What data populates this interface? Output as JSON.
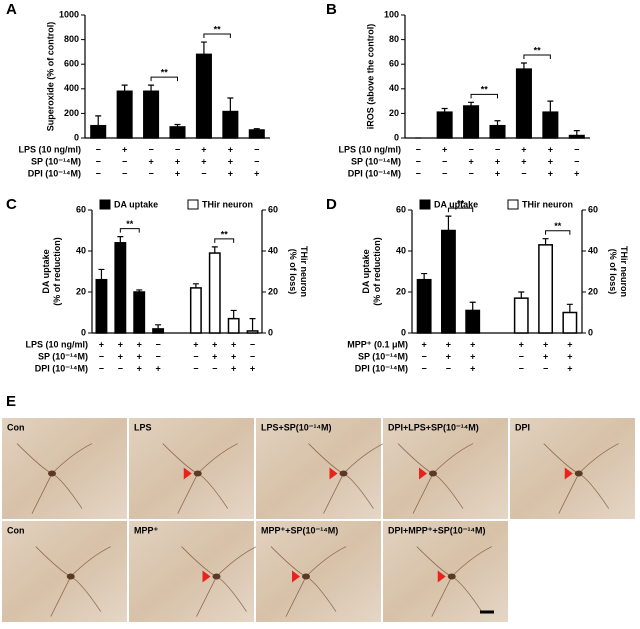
{
  "chart_data": [
    {
      "panel": "A",
      "type": "bar",
      "ylabel": "Superoxide (% of control)",
      "color": "#000000",
      "values": [
        100,
        380,
        380,
        90,
        680,
        215,
        65
      ],
      "errors": [
        80,
        50,
        50,
        20,
        100,
        110,
        10
      ],
      "ylim": [
        0,
        1000
      ],
      "yticks": [
        0,
        200,
        400,
        600,
        800,
        1000
      ],
      "conditions": [
        {
          "label": "LPS (10 ng/ml)",
          "marks": [
            "−",
            "+",
            "−",
            "−",
            "+",
            "+",
            "−"
          ]
        },
        {
          "label": "SP (10⁻¹⁴M)",
          "marks": [
            "−",
            "−",
            "+",
            "+",
            "+",
            "+",
            "−"
          ]
        },
        {
          "label": "DPI (10⁻¹⁴M)",
          "marks": [
            "−",
            "−",
            "−",
            "+",
            "−",
            "+",
            "+"
          ]
        }
      ],
      "significance": [
        {
          "from": 2,
          "to": 3,
          "label": "**"
        },
        {
          "from": 4,
          "to": 5,
          "label": "**"
        }
      ]
    },
    {
      "panel": "B",
      "type": "bar",
      "ylabel": "iROS (above the control)",
      "color": "#000000",
      "values": [
        0,
        21,
        26,
        10,
        56,
        21,
        2
      ],
      "errors": [
        0,
        3,
        3,
        4,
        5,
        9,
        4
      ],
      "ylim": [
        0,
        100
      ],
      "yticks": [
        0,
        20,
        40,
        60,
        80,
        100
      ],
      "conditions": [
        {
          "label": "LPS (10 ng/ml)",
          "marks": [
            "−",
            "+",
            "−",
            "−",
            "+",
            "+",
            "−"
          ]
        },
        {
          "label": "SP (10⁻¹⁴M)",
          "marks": [
            "−",
            "−",
            "+",
            "+",
            "+",
            "+",
            "−"
          ]
        },
        {
          "label": "DPI (10⁻¹⁴M)",
          "marks": [
            "−",
            "−",
            "−",
            "+",
            "−",
            "+",
            "+"
          ]
        }
      ],
      "significance": [
        {
          "from": 2,
          "to": 3,
          "label": "**"
        },
        {
          "from": 4,
          "to": 5,
          "label": "**"
        }
      ]
    },
    {
      "panel": "C",
      "type": "bar",
      "ylabel": "DA uptake\n(% of reduction)",
      "y2label": "THir neuron\n(% of loss)",
      "series": [
        {
          "name": "DA uptake",
          "color": "#000000",
          "values": [
            26,
            44,
            20,
            2
          ],
          "errors": [
            5,
            3,
            1,
            2
          ]
        },
        {
          "name": "THir neuron",
          "color": "#ffffff",
          "axis": "y2",
          "values": [
            22,
            39,
            7,
            1
          ],
          "errors": [
            2,
            3,
            4,
            6
          ]
        }
      ],
      "ylim": [
        0,
        60
      ],
      "yticks": [
        0,
        20,
        40,
        60
      ],
      "y2lim": [
        0,
        60
      ],
      "y2ticks": [
        0,
        20,
        40,
        60
      ],
      "conditions": [
        {
          "label": "LPS (10 ng/ml)",
          "marks": [
            "+",
            "+",
            "+",
            "−",
            "+",
            "+",
            "+",
            "−"
          ]
        },
        {
          "label": "SP (10⁻¹⁴M)",
          "marks": [
            "−",
            "+",
            "+",
            "−",
            "−",
            "+",
            "+",
            "−"
          ]
        },
        {
          "label": "DPI (10⁻¹⁴M)",
          "marks": [
            "−",
            "−",
            "+",
            "+",
            "−",
            "−",
            "+",
            "+"
          ]
        }
      ],
      "significance": [
        {
          "series": 0,
          "from": 1,
          "to": 2,
          "label": "**"
        },
        {
          "series": 1,
          "from": 1,
          "to": 2,
          "label": "**"
        }
      ]
    },
    {
      "panel": "D",
      "type": "bar",
      "ylabel": "DA uptake\n(% of reduction)",
      "y2label": "THir neuron\n(% of loss)",
      "series": [
        {
          "name": "DA uptake",
          "color": "#000000",
          "values": [
            26,
            50,
            11
          ],
          "errors": [
            3,
            7,
            4
          ]
        },
        {
          "name": "THir neuron",
          "color": "#ffffff",
          "axis": "y2",
          "values": [
            17,
            43,
            10
          ],
          "errors": [
            3,
            3,
            4
          ]
        }
      ],
      "ylim": [
        0,
        60
      ],
      "yticks": [
        0,
        20,
        40,
        60
      ],
      "y2lim": [
        0,
        60
      ],
      "y2ticks": [
        0,
        20,
        40,
        60
      ],
      "conditions": [
        {
          "label": "MPP⁺ (0.1 μM)",
          "marks": [
            "+",
            "+",
            "+",
            "+",
            "+",
            "+"
          ]
        },
        {
          "label": "SP (10⁻¹⁴M)",
          "marks": [
            "−",
            "+",
            "+",
            "−",
            "+",
            "+"
          ]
        },
        {
          "label": "DPI (10⁻¹⁴M)",
          "marks": [
            "−",
            "−",
            "+",
            "−",
            "−",
            "+"
          ]
        }
      ],
      "significance": [
        {
          "series": 0,
          "from": 1,
          "to": 2,
          "label": "**"
        },
        {
          "series": 1,
          "from": 1,
          "to": 2,
          "label": "**"
        }
      ]
    }
  ],
  "micrographs": {
    "panel": "E",
    "rows": [
      [
        "Con",
        "LPS",
        "LPS+SP(10⁻¹⁴M)",
        "DPI+LPS+SP(10⁻¹⁴M)",
        "DPI"
      ],
      [
        "Con",
        "MPP⁺",
        "MPP⁺+SP(10⁻¹⁴M)",
        "DPI+MPP⁺+SP(10⁻¹⁴M)"
      ]
    ]
  }
}
